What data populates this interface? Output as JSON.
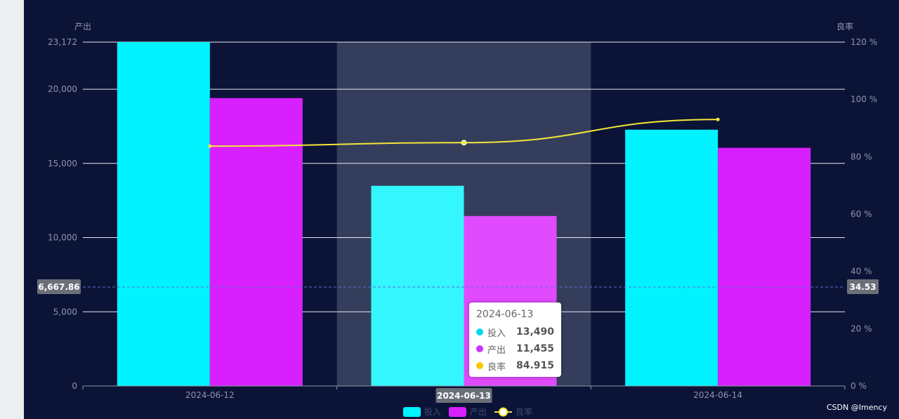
{
  "colors": {
    "background": "#0b1437",
    "input_bar": "#00f3ff",
    "output_bar": "#d820ff",
    "rate_line": "#f5e63a",
    "hover_shadow": "#343e5c",
    "crosshair": "#5a6fd0",
    "pointer_box": "#6b6f78"
  },
  "chart_data": {
    "type": "bar",
    "categories": [
      "2024-06-12",
      "2024-06-13",
      "2024-06-14"
    ],
    "series": [
      {
        "name": "投入",
        "type": "bar",
        "axis": "left",
        "values": [
          23172,
          13490,
          17270
        ]
      },
      {
        "name": "产出",
        "type": "bar",
        "axis": "left",
        "values": [
          19400,
          11455,
          16050
        ]
      },
      {
        "name": "良率",
        "type": "line",
        "axis": "right",
        "values": [
          83.7,
          84.915,
          93.0
        ]
      }
    ],
    "y_left": {
      "name": "产出",
      "min": 0,
      "max": 23172,
      "ticks": [
        0,
        5000,
        10000,
        15000,
        20000,
        23172
      ],
      "tick_labels": [
        "0",
        "5,000",
        "10,000",
        "15,000",
        "20,000",
        "23,172"
      ]
    },
    "y_right": {
      "name": "良率",
      "min": 0,
      "max": 120,
      "ticks": [
        0,
        20,
        40,
        60,
        80,
        100,
        120
      ],
      "tick_labels": [
        "0 %",
        "20 %",
        "40 %",
        "60 %",
        "80 %",
        "100 %",
        "120 %"
      ]
    },
    "grid": true,
    "legend": {
      "position": "bottom-center",
      "items": [
        "投入",
        "产出",
        "良率"
      ]
    },
    "hover": {
      "category": "2024-06-13",
      "crosshair_left_label": "6,667.86",
      "crosshair_right_label": "34.53",
      "crosshair_value": 6667.86,
      "tooltip": {
        "title": "2024-06-13",
        "rows": [
          {
            "name": "投入",
            "value": "13,490"
          },
          {
            "name": "产出",
            "value": "11,455"
          },
          {
            "name": "良率",
            "value": "84.915"
          }
        ]
      }
    }
  },
  "credit": "CSDN @Imency"
}
